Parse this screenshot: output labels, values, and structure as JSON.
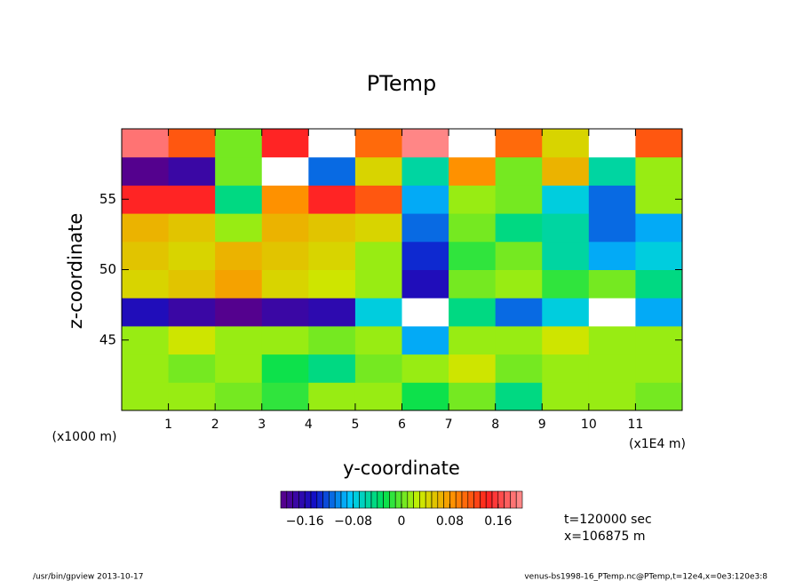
{
  "chart_data": {
    "type": "heatmap",
    "title": "PTemp",
    "x_label": "y-coordinate",
    "y_label": "z-coordinate",
    "x_unit": "(x1E4 m)",
    "y_unit": "(x1000 m)",
    "x": [
      0.5,
      1.5,
      2.5,
      3.5,
      4.5,
      5.5,
      6.5,
      7.5,
      8.5,
      9.5,
      10.5,
      11.5
    ],
    "y": [
      41,
      43,
      45,
      47,
      49,
      51,
      53,
      55,
      57,
      59
    ],
    "z": [
      [
        0.01,
        0.02,
        0.0,
        -0.02,
        0.01,
        0.02,
        -0.03,
        0.0,
        -0.04,
        0.02,
        0.01,
        0.0
      ],
      [
        0.02,
        0.0,
        0.01,
        -0.03,
        -0.05,
        0.0,
        0.01,
        0.03,
        0.0,
        0.02,
        0.01,
        0.02
      ],
      [
        0.02,
        0.03,
        0.01,
        0.02,
        0.0,
        0.01,
        -0.1,
        0.02,
        0.01,
        0.03,
        0.02,
        0.01
      ],
      [
        -0.16,
        -0.18,
        -0.2,
        -0.18,
        -0.17,
        -0.08,
        -0.22,
        -0.05,
        -0.12,
        -0.08,
        -0.22,
        -0.1
      ],
      [
        0.04,
        0.05,
        0.07,
        0.04,
        0.03,
        0.02,
        -0.16,
        0.0,
        0.02,
        -0.02,
        0.0,
        -0.04
      ],
      [
        0.05,
        0.04,
        0.06,
        0.05,
        0.04,
        0.02,
        -0.14,
        -0.02,
        0.0,
        -0.06,
        -0.1,
        -0.08
      ],
      [
        0.06,
        0.05,
        0.02,
        0.06,
        0.05,
        0.04,
        -0.12,
        0.0,
        -0.04,
        -0.06,
        -0.12,
        -0.1
      ],
      [
        0.14,
        0.15,
        -0.04,
        0.08,
        0.14,
        0.12,
        -0.1,
        0.02,
        0.0,
        -0.08,
        -0.12,
        0.02
      ],
      [
        -0.2,
        -0.18,
        0.0,
        -0.22,
        -0.12,
        0.04,
        -0.06,
        0.08,
        0.0,
        0.06,
        -0.06,
        0.02
      ],
      [
        0.18,
        0.12,
        0.0,
        0.14,
        0.22,
        0.1,
        0.2,
        0.22,
        0.1,
        0.04,
        0.22,
        0.12
      ]
    ],
    "xlim": [
      0,
      12
    ],
    "ylim": [
      40,
      60
    ],
    "xticks": [
      1,
      2,
      3,
      4,
      5,
      6,
      7,
      8,
      9,
      10,
      11
    ],
    "yticks": [
      45,
      50,
      55
    ],
    "clim": [
      -0.2,
      0.2
    ],
    "levels": 40,
    "cticks": [
      {
        "value": -0.16,
        "label": "−0.16"
      },
      {
        "value": -0.08,
        "label": "−0.08"
      },
      0,
      0.08,
      0.16
    ],
    "colormap": [
      "#5a0088",
      "#1010c8",
      "#00c8ff",
      "#00e050",
      "#c8f000",
      "#ff9000",
      "#ff2020",
      "#ff9090"
    ],
    "out_of_range_color": "#ffffff",
    "annotations": [
      "t=120000 sec",
      "x=106875 m"
    ],
    "footer_left": "/usr/bin/gpview  2013-10-17",
    "footer_right": "venus-bs1998-16_PTemp.nc@PTemp,t=12e4,x=0e3:120e3:8"
  }
}
